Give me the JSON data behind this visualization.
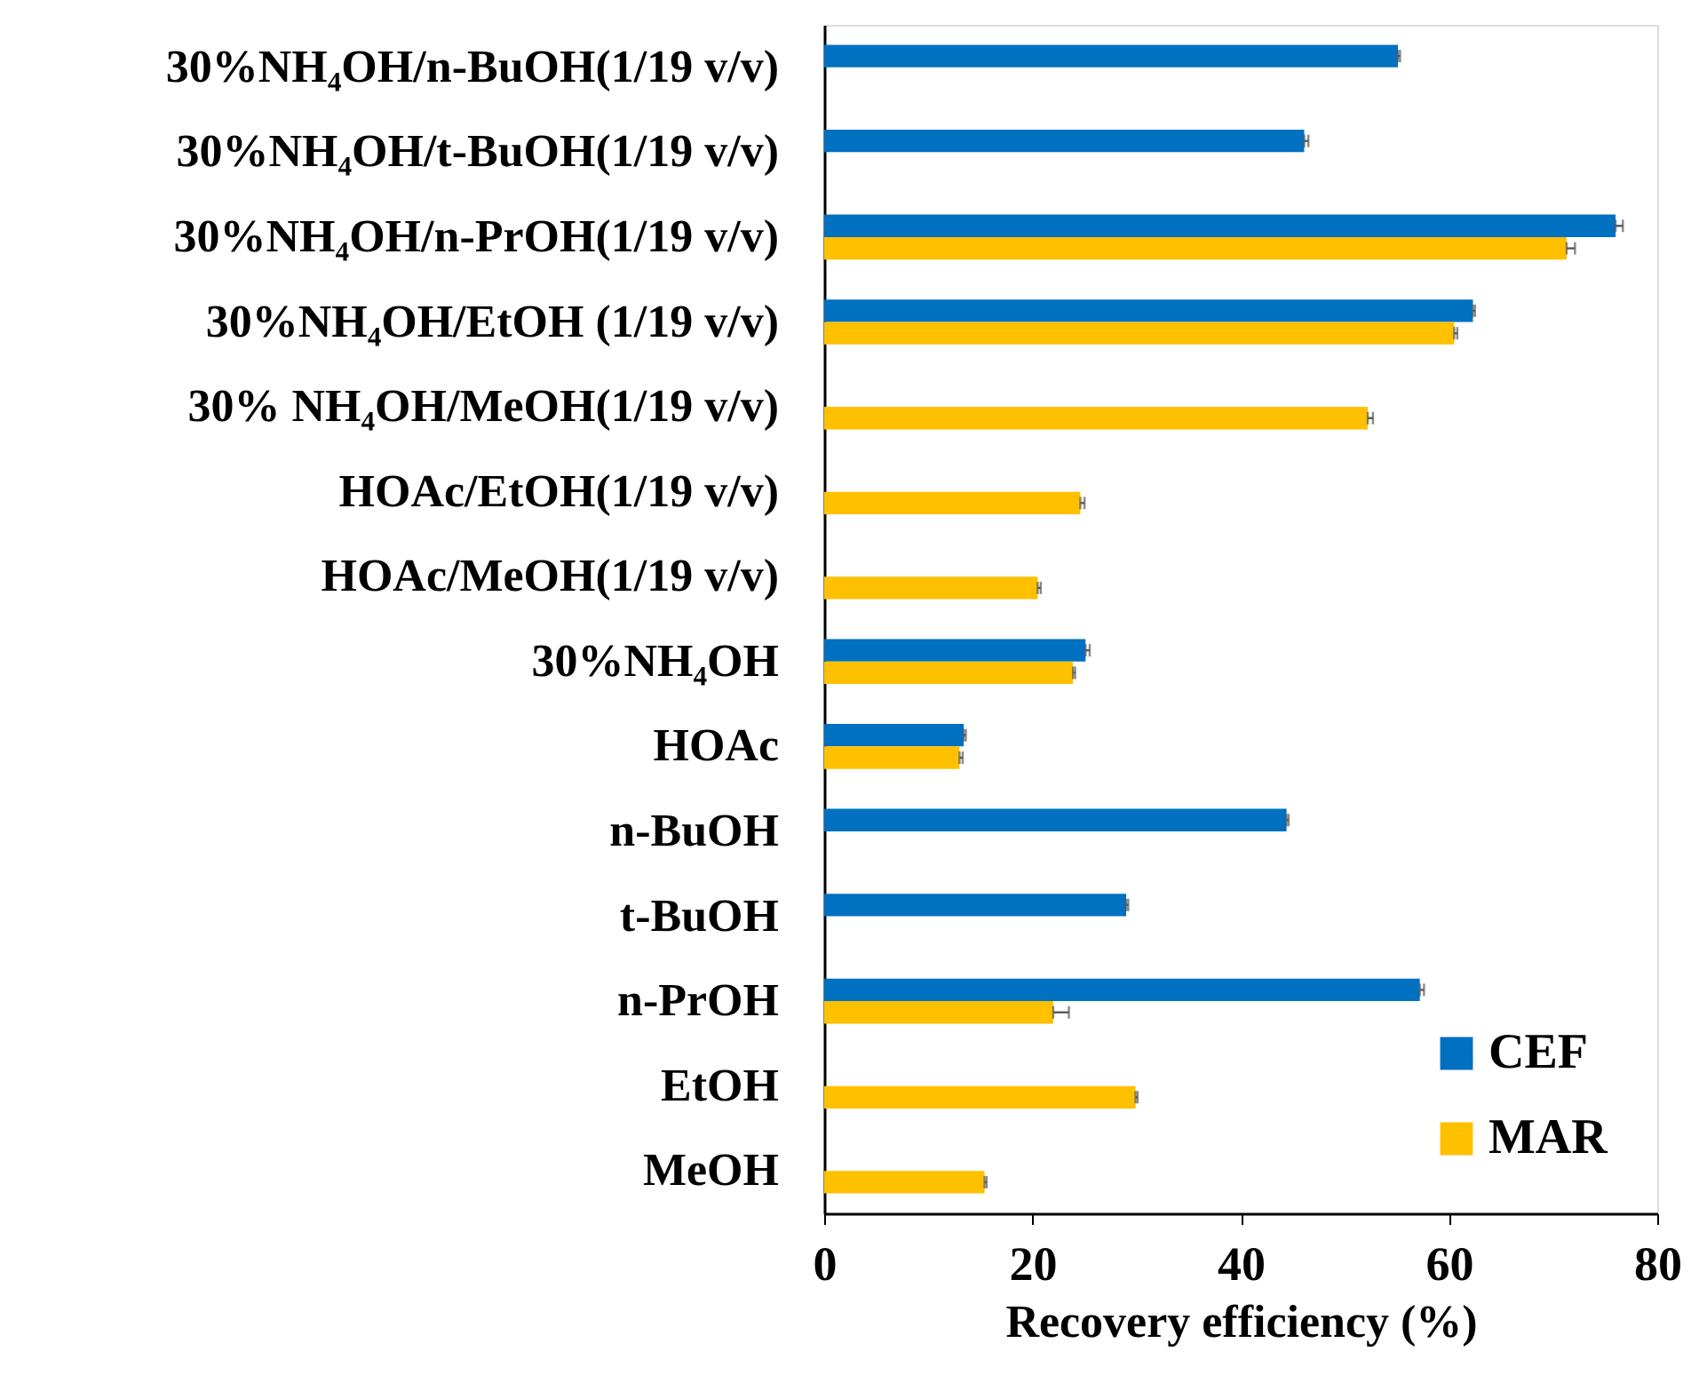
{
  "chart_data": {
    "type": "bar",
    "orientation": "horizontal",
    "categories": [
      "30%NH₄OH/n-BuOH(1/19 v/v)",
      "30%NH₄OH/t-BuOH(1/19 v/v)",
      "30%NH₄OH/n-PrOH(1/19 v/v)",
      "30%NH₄OH/EtOH (1/19 v/v)",
      "30% NH₄OH/MeOH(1/19 v/v)",
      "HOAc/EtOH(1/19 v/v)",
      "HOAc/MeOH(1/19 v/v)",
      "30%NH₄OH",
      "HOAc",
      "n-BuOH",
      "t-BuOH",
      "n-PrOH",
      "EtOH",
      "MeOH"
    ],
    "series": [
      {
        "name": "CEF",
        "color": "#0070c0",
        "values": [
          55.1,
          46.1,
          76.0,
          62.3,
          null,
          null,
          null,
          25.1,
          13.4,
          44.4,
          29.0,
          57.2,
          null,
          null
        ],
        "errors": [
          [
            55.1,
            55.3
          ],
          [
            46.1,
            46.5
          ],
          [
            76.0,
            76.7
          ],
          [
            62.3,
            62.5
          ],
          null,
          null,
          null,
          [
            25.1,
            25.5
          ],
          [
            13.4,
            13.6
          ],
          [
            44.4,
            44.6
          ],
          [
            29.0,
            29.2
          ],
          [
            57.2,
            57.6
          ],
          null,
          null
        ]
      },
      {
        "name": "MAR",
        "color": "#ffc000",
        "values": [
          null,
          null,
          71.3,
          60.5,
          52.2,
          24.6,
          20.5,
          23.9,
          13.0,
          null,
          null,
          22.0,
          29.9,
          15.4
        ],
        "errors": [
          null,
          null,
          [
            71.3,
            72.1
          ],
          [
            60.5,
            60.8
          ],
          [
            52.2,
            52.7
          ],
          [
            24.6,
            25.0
          ],
          [
            20.5,
            20.8
          ],
          [
            23.9,
            24.1
          ],
          [
            13.0,
            13.3
          ],
          null,
          null,
          [
            22.0,
            23.5
          ],
          [
            29.9,
            30.1
          ],
          [
            15.4,
            15.6
          ]
        ]
      }
    ],
    "xlim": [
      0,
      80
    ],
    "xticks": [
      0,
      20,
      40,
      60,
      80
    ],
    "xlabel": "Recovery efficiency (%)",
    "legend": "bottom right"
  }
}
